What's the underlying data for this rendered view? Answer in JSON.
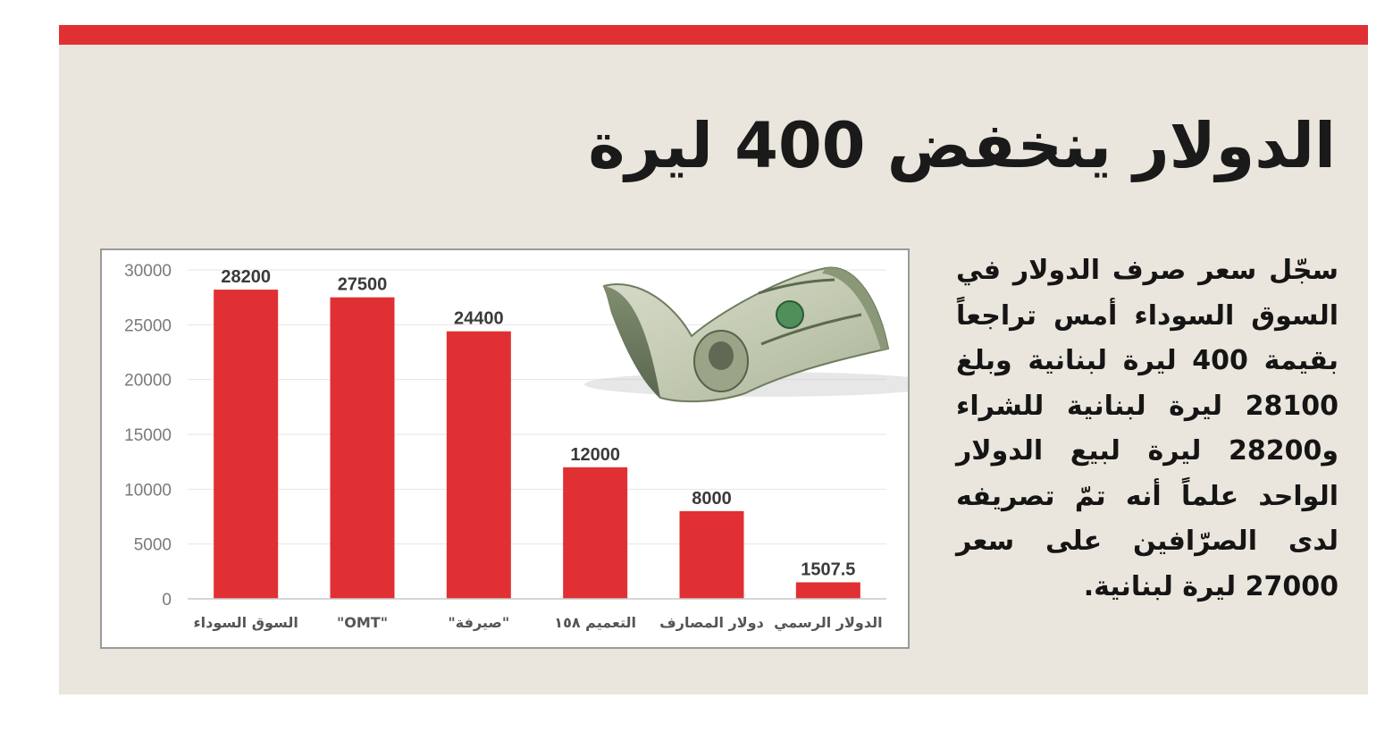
{
  "headline": "الدولار ينخفض 400 ليرة",
  "body_text": "سجّل سعر صرف الدولار في السوق السوداء أمس تراجعاً بقيمة 400 ليرة لبنانية وبلغ 28100 ليرة لبنانية للشراء و28200 ليرة لبيع الدولار الواحد علماً أنه تمّ تصريفه لدى الصرّافين على سعر 27000 ليرة لبنانية.",
  "colors": {
    "accent": "#e03033",
    "panel": "#eae6dd"
  },
  "decoration": {
    "icon": "us-dollar-banknote-image"
  },
  "chart_data": {
    "type": "bar",
    "categories": [
      "السوق السوداء",
      "\"OMT\"",
      "\"صيرفة\"",
      "التعميم ١٥٨",
      "دولار المصارف",
      "الدولار الرسمي"
    ],
    "values": [
      28200,
      27500,
      24400,
      12000,
      8000,
      1507.5
    ],
    "value_labels": [
      "28200",
      "27500",
      "24400",
      "12000",
      "8000",
      "1507.5"
    ],
    "y_ticks": [
      0,
      5000,
      10000,
      15000,
      20000,
      25000,
      30000
    ],
    "ylim": [
      0,
      30000
    ],
    "bar_color": "#e03033",
    "grid": true
  }
}
